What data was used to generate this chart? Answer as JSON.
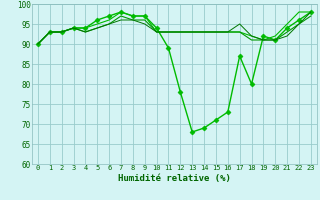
{
  "series": [
    {
      "x": [
        0,
        1,
        2,
        3,
        4,
        5,
        6,
        7,
        8,
        9,
        10,
        11,
        12,
        13,
        14,
        15,
        16,
        17,
        18,
        19,
        20,
        21,
        22,
        23
      ],
      "y": [
        90,
        93,
        93,
        94,
        94,
        96,
        97,
        98,
        97,
        97,
        94,
        89,
        78,
        68,
        69,
        71,
        73,
        87,
        80,
        92,
        91,
        94,
        96,
        98
      ],
      "color": "#00bb00",
      "marker": "D",
      "markersize": 2.5,
      "linewidth": 1.0
    },
    {
      "x": [
        0,
        1,
        2,
        3,
        4,
        5,
        6,
        7,
        8,
        9,
        10,
        11,
        12,
        13,
        14,
        15,
        16,
        17,
        18,
        19,
        20,
        21,
        22,
        23
      ],
      "y": [
        90,
        93,
        93,
        94,
        94,
        95,
        96,
        98,
        97,
        97,
        93,
        93,
        93,
        93,
        93,
        93,
        93,
        93,
        92,
        91,
        92,
        95,
        98,
        98
      ],
      "color": "#00bb00",
      "marker": null,
      "markersize": 0,
      "linewidth": 0.8
    },
    {
      "x": [
        0,
        1,
        2,
        3,
        4,
        5,
        6,
        7,
        8,
        9,
        10,
        11,
        12,
        13,
        14,
        15,
        16,
        17,
        18,
        19,
        20,
        21,
        22,
        23
      ],
      "y": [
        90,
        93,
        93,
        94,
        93,
        94,
        95,
        97,
        96,
        96,
        93,
        93,
        93,
        93,
        93,
        93,
        93,
        93,
        91,
        91,
        91,
        93,
        95,
        97
      ],
      "color": "#009900",
      "marker": null,
      "markersize": 0,
      "linewidth": 0.8
    },
    {
      "x": [
        0,
        1,
        2,
        3,
        4,
        5,
        6,
        7,
        8,
        9,
        10,
        11,
        12,
        13,
        14,
        15,
        16,
        17,
        18,
        19,
        20,
        21,
        22,
        23
      ],
      "y": [
        90,
        93,
        93,
        94,
        93,
        94,
        95,
        96,
        96,
        95,
        93,
        93,
        93,
        93,
        93,
        93,
        93,
        95,
        92,
        91,
        91,
        92,
        95,
        98
      ],
      "color": "#007700",
      "marker": null,
      "markersize": 0,
      "linewidth": 0.7
    }
  ],
  "background_color": "#d4f4f4",
  "grid_color": "#99cccc",
  "xlabel": "Humidité relative (%)",
  "xlabel_color": "#006600",
  "tick_color": "#006600",
  "xlim": [
    -0.5,
    23.5
  ],
  "ylim": [
    60,
    100
  ],
  "yticks": [
    60,
    65,
    70,
    75,
    80,
    85,
    90,
    95,
    100
  ],
  "xticks": [
    0,
    1,
    2,
    3,
    4,
    5,
    6,
    7,
    8,
    9,
    10,
    11,
    12,
    13,
    14,
    15,
    16,
    17,
    18,
    19,
    20,
    21,
    22,
    23
  ],
  "xtick_labels": [
    "0",
    "1",
    "2",
    "3",
    "4",
    "5",
    "6",
    "7",
    "8",
    "9",
    "10",
    "11",
    "12",
    "13",
    "14",
    "15",
    "16",
    "17",
    "18",
    "19",
    "20",
    "21",
    "22",
    "23"
  ]
}
